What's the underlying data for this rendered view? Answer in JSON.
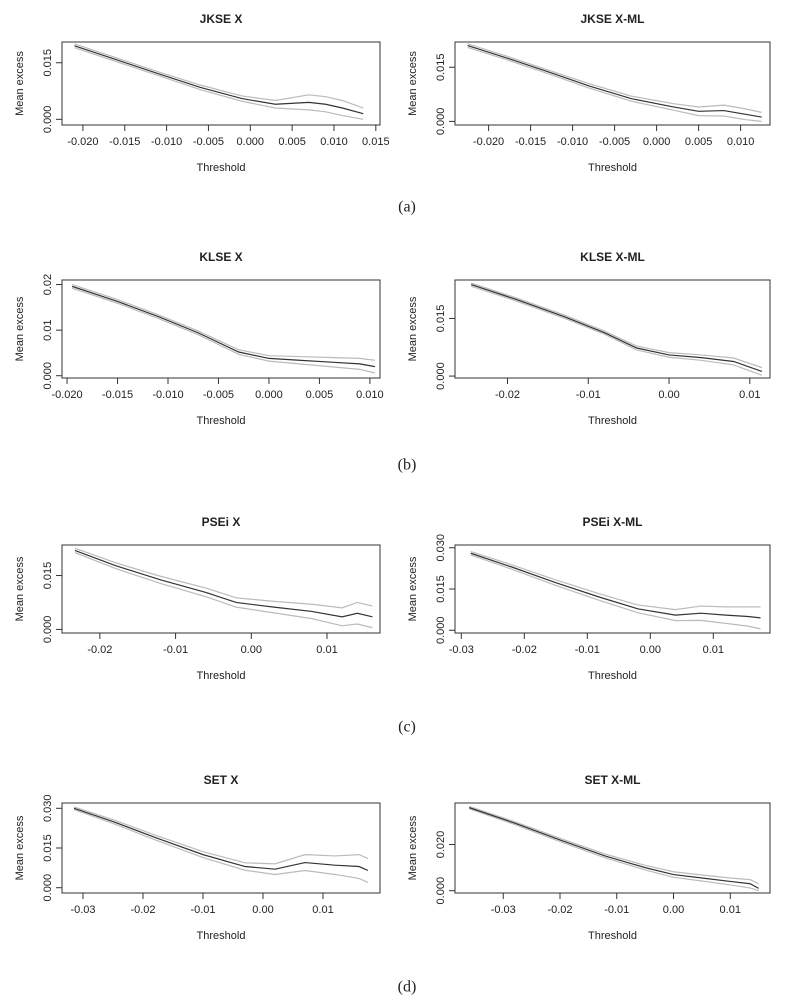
{
  "captions": [
    "(a)",
    "(b)",
    "(c)",
    "(d)"
  ],
  "chart_data": [
    {
      "type": "line",
      "title": "JKSE X",
      "xlabel": "Threshold",
      "ylabel": "Mean excess",
      "x": [
        -0.021,
        -0.016,
        -0.011,
        -0.006,
        -0.001,
        0.003,
        0.007,
        0.009,
        0.011,
        0.0135
      ],
      "series": [
        {
          "color": "#bbbbbb",
          "values": [
            0.02,
            0.0163,
            0.0126,
            0.0091,
            0.0062,
            0.005,
            0.0065,
            0.006,
            0.005,
            0.003
          ]
        },
        {
          "color": "#bbbbbb",
          "values": [
            0.019,
            0.0153,
            0.0116,
            0.0079,
            0.0048,
            0.003,
            0.0025,
            0.002,
            0.001,
            0.0
          ]
        },
        {
          "color": "#333333",
          "values": [
            0.0195,
            0.0158,
            0.0121,
            0.0085,
            0.0055,
            0.004,
            0.0045,
            0.004,
            0.003,
            0.0015
          ]
        }
      ],
      "xlim": [
        -0.0225,
        0.0155
      ],
      "ylim": [
        -0.0015,
        0.0205
      ],
      "xticks": [
        {
          "value": -0.02,
          "label": "-0.020"
        },
        {
          "value": -0.015,
          "label": "-0.015"
        },
        {
          "value": -0.01,
          "label": "-0.010"
        },
        {
          "value": -0.005,
          "label": "-0.005"
        },
        {
          "value": 0,
          "label": "0.000"
        },
        {
          "value": 0.005,
          "label": "0.005"
        },
        {
          "value": 0.01,
          "label": "0.010"
        },
        {
          "value": 0.015,
          "label": "0.015"
        }
      ],
      "yticks": [
        {
          "value": 0,
          "label": "0.000"
        },
        0.015
      ]
    },
    {
      "type": "line",
      "title": "JKSE X-ML",
      "xlabel": "Threshold",
      "ylabel": "Mean excess",
      "x": [
        -0.0225,
        -0.018,
        -0.013,
        -0.008,
        -0.003,
        0.002,
        0.005,
        0.008,
        0.0105,
        0.0125
      ],
      "series": [
        {
          "color": "#bbbbbb",
          "values": [
            0.0215,
            0.0182,
            0.0143,
            0.0104,
            0.007,
            0.0049,
            0.004,
            0.0045,
            0.0035,
            0.0025
          ]
        },
        {
          "color": "#bbbbbb",
          "values": [
            0.0205,
            0.0172,
            0.0133,
            0.0092,
            0.0056,
            0.0031,
            0.0016,
            0.0015,
            0.0005,
            0.0
          ]
        },
        {
          "color": "#333333",
          "values": [
            0.021,
            0.0177,
            0.0138,
            0.0098,
            0.0063,
            0.004,
            0.0028,
            0.003,
            0.002,
            0.0012
          ]
        }
      ],
      "xlim": [
        -0.024,
        0.0135
      ],
      "ylim": [
        -0.001,
        0.022
      ],
      "xticks": [
        {
          "value": -0.02,
          "label": "-0.020"
        },
        {
          "value": -0.015,
          "label": "-0.015"
        },
        {
          "value": -0.01,
          "label": "-0.010"
        },
        {
          "value": -0.005,
          "label": "-0.005"
        },
        {
          "value": 0,
          "label": "0.000"
        },
        {
          "value": 0.005,
          "label": "0.005"
        },
        {
          "value": 0.01,
          "label": "0.010"
        }
      ],
      "yticks": [
        {
          "value": 0,
          "label": "0.000"
        },
        0.015
      ]
    },
    {
      "type": "line",
      "title": "KLSE X",
      "xlabel": "Threshold",
      "ylabel": "Mean excess",
      "x": [
        -0.0195,
        -0.015,
        -0.011,
        -0.007,
        -0.003,
        0,
        0.003,
        0.006,
        0.009,
        0.0105
      ],
      "series": [
        {
          "color": "#bbbbbb",
          "values": [
            0.02,
            0.0167,
            0.0134,
            0.0098,
            0.0057,
            0.0044,
            0.0042,
            0.004,
            0.0038,
            0.0034
          ]
        },
        {
          "color": "#bbbbbb",
          "values": [
            0.0192,
            0.0159,
            0.0126,
            0.009,
            0.0047,
            0.0032,
            0.0026,
            0.002,
            0.0014,
            0.0006
          ]
        },
        {
          "color": "#333333",
          "values": [
            0.0196,
            0.0163,
            0.013,
            0.0094,
            0.0052,
            0.0038,
            0.0034,
            0.003,
            0.0026,
            0.002
          ]
        }
      ],
      "xlim": [
        -0.0205,
        0.011
      ],
      "ylim": [
        -0.0005,
        0.021
      ],
      "xticks": [
        {
          "value": -0.02,
          "label": "-0.020"
        },
        {
          "value": -0.015,
          "label": "-0.015"
        },
        {
          "value": -0.01,
          "label": "-0.010"
        },
        {
          "value": -0.005,
          "label": "-0.005"
        },
        {
          "value": 0,
          "label": "0.000"
        },
        {
          "value": 0.005,
          "label": "0.005"
        },
        {
          "value": 0.01,
          "label": "0.010"
        }
      ],
      "yticks": [
        {
          "value": 0,
          "label": "0.000"
        },
        0.01,
        0.02
      ]
    },
    {
      "type": "line",
      "title": "KLSE X-ML",
      "xlabel": "Threshold",
      "ylabel": "Mean excess",
      "x": [
        -0.0245,
        -0.019,
        -0.013,
        -0.008,
        -0.004,
        0,
        0.004,
        0.008,
        0.0115
      ],
      "series": [
        {
          "color": "#bbbbbb",
          "values": [
            0.0242,
            0.0204,
            0.0159,
            0.0117,
            0.0078,
            0.0061,
            0.0055,
            0.0047,
            0.0022
          ]
        },
        {
          "color": "#bbbbbb",
          "values": [
            0.0234,
            0.0196,
            0.0151,
            0.0109,
            0.0068,
            0.0049,
            0.0041,
            0.0029,
            0.0002
          ]
        },
        {
          "color": "#333333",
          "values": [
            0.0238,
            0.02,
            0.0155,
            0.0113,
            0.0073,
            0.0055,
            0.0048,
            0.0038,
            0.0012
          ]
        }
      ],
      "xlim": [
        -0.0265,
        0.0125
      ],
      "ylim": [
        -0.0005,
        0.025
      ],
      "xticks": [
        -0.02,
        -0.01,
        {
          "value": 0,
          "label": "0.00"
        },
        0.01
      ],
      "yticks": [
        {
          "value": 0,
          "label": "0.000"
        },
        0.015
      ]
    },
    {
      "type": "line",
      "title": "PSEi X",
      "xlabel": "Threshold",
      "ylabel": "Mean excess",
      "x": [
        -0.0233,
        -0.018,
        -0.012,
        -0.006,
        -0.002,
        0.003,
        0.008,
        0.012,
        0.014,
        0.016
      ],
      "series": [
        {
          "color": "#bbbbbb",
          "values": [
            0.0226,
            0.0186,
            0.0148,
            0.0115,
            0.0088,
            0.0078,
            0.007,
            0.006,
            0.0075,
            0.0065
          ]
        },
        {
          "color": "#bbbbbb",
          "values": [
            0.0214,
            0.017,
            0.0128,
            0.0091,
            0.0062,
            0.0046,
            0.003,
            0.001,
            0.0015,
            0.0005
          ]
        },
        {
          "color": "#333333",
          "values": [
            0.022,
            0.0178,
            0.0138,
            0.0103,
            0.0075,
            0.0062,
            0.005,
            0.0035,
            0.0045,
            0.0035
          ]
        }
      ],
      "xlim": [
        -0.025,
        0.017
      ],
      "ylim": [
        -0.001,
        0.0235
      ],
      "xticks": [
        -0.02,
        -0.01,
        {
          "value": 0,
          "label": "0.00"
        },
        0.01
      ],
      "yticks": [
        {
          "value": 0,
          "label": "0.000"
        },
        0.015
      ]
    },
    {
      "type": "line",
      "title": "PSEi X-ML",
      "xlabel": "Threshold",
      "ylabel": "Mean excess",
      "x": [
        -0.0285,
        -0.022,
        -0.015,
        -0.008,
        -0.002,
        0.004,
        0.008,
        0.012,
        0.0155,
        0.0175
      ],
      "series": [
        {
          "color": "#bbbbbb",
          "values": [
            0.0286,
            0.0238,
            0.0183,
            0.0132,
            0.0092,
            0.0075,
            0.0088,
            0.0085,
            0.0085,
            0.0085
          ]
        },
        {
          "color": "#bbbbbb",
          "values": [
            0.0274,
            0.0222,
            0.0163,
            0.0108,
            0.0064,
            0.0035,
            0.0036,
            0.0025,
            0.0015,
            0.0005
          ]
        },
        {
          "color": "#333333",
          "values": [
            0.028,
            0.023,
            0.0173,
            0.012,
            0.0078,
            0.0055,
            0.0062,
            0.0055,
            0.005,
            0.0045
          ]
        }
      ],
      "xlim": [
        -0.031,
        0.019
      ],
      "ylim": [
        -0.001,
        0.031
      ],
      "xticks": [
        -0.03,
        -0.02,
        -0.01,
        {
          "value": 0,
          "label": "0.00"
        },
        0.01
      ],
      "yticks": [
        {
          "value": 0,
          "label": "0.000"
        },
        0.015,
        {
          "value": 0.03,
          "label": "0.030"
        }
      ]
    },
    {
      "type": "line",
      "title": "SET X",
      "xlabel": "Threshold",
      "ylabel": "Mean excess",
      "x": [
        -0.0315,
        -0.025,
        -0.018,
        -0.01,
        -0.003,
        0.002,
        0.007,
        0.012,
        0.016,
        0.0175
      ],
      "series": [
        {
          "color": "#bbbbbb",
          "values": [
            0.0305,
            0.0257,
            0.0199,
            0.0136,
            0.0094,
            0.009,
            0.0125,
            0.012,
            0.0125,
            0.011
          ]
        },
        {
          "color": "#bbbbbb",
          "values": [
            0.0295,
            0.0243,
            0.0181,
            0.0114,
            0.0066,
            0.005,
            0.0065,
            0.005,
            0.0035,
            0.002
          ]
        },
        {
          "color": "#333333",
          "values": [
            0.03,
            0.025,
            0.019,
            0.0125,
            0.008,
            0.007,
            0.0095,
            0.0085,
            0.008,
            0.0065
          ]
        }
      ],
      "xlim": [
        -0.0335,
        0.0195
      ],
      "ylim": [
        -0.002,
        0.032
      ],
      "xticks": [
        -0.03,
        -0.02,
        -0.01,
        {
          "value": 0,
          "label": "0.00"
        },
        0.01
      ],
      "yticks": [
        {
          "value": 0,
          "label": "0.000"
        },
        0.015,
        {
          "value": 0.03,
          "label": "0.030"
        }
      ]
    },
    {
      "type": "line",
      "title": "SET X-ML",
      "xlabel": "Threshold",
      "ylabel": "Mean excess",
      "x": [
        -0.036,
        -0.028,
        -0.02,
        -0.012,
        -0.005,
        0,
        0.005,
        0.01,
        0.0135,
        0.015
      ],
      "series": [
        {
          "color": "#bbbbbb",
          "values": [
            0.0365,
            0.0299,
            0.0227,
            0.0158,
            0.011,
            0.0082,
            0.0068,
            0.0055,
            0.0048,
            0.003
          ]
        },
        {
          "color": "#bbbbbb",
          "values": [
            0.0355,
            0.0287,
            0.0213,
            0.0142,
            0.009,
            0.0058,
            0.0042,
            0.0025,
            0.0012,
            0.0
          ]
        },
        {
          "color": "#333333",
          "values": [
            0.036,
            0.0293,
            0.022,
            0.015,
            0.01,
            0.007,
            0.0055,
            0.004,
            0.003,
            0.001
          ]
        }
      ],
      "xlim": [
        -0.0385,
        0.017
      ],
      "ylim": [
        -0.001,
        0.038
      ],
      "xticks": [
        -0.03,
        -0.02,
        -0.01,
        {
          "value": 0,
          "label": "0.00"
        },
        0.01
      ],
      "yticks": [
        {
          "value": 0,
          "label": "0.000"
        },
        {
          "value": 0.02,
          "label": "0.020"
        }
      ]
    }
  ]
}
